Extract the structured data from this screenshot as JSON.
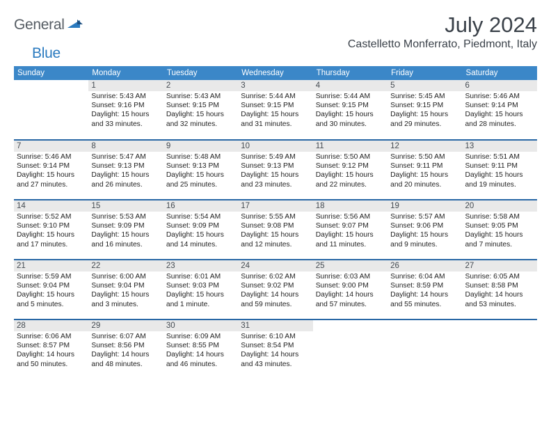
{
  "logo": {
    "word1": "General",
    "word2": "Blue"
  },
  "title": "July 2024",
  "location": "Castelletto Monferrato, Piedmont, Italy",
  "day_headers": [
    "Sunday",
    "Monday",
    "Tuesday",
    "Wednesday",
    "Thursday",
    "Friday",
    "Saturday"
  ],
  "header_bg": "#3b87c8",
  "rule_color": "#2867a5",
  "daynum_bg": "#e9e9e9",
  "weeks": [
    [
      {
        "n": "",
        "sr": "",
        "ss": "",
        "dl": ""
      },
      {
        "n": "1",
        "sr": "Sunrise: 5:43 AM",
        "ss": "Sunset: 9:16 PM",
        "dl": "Daylight: 15 hours and 33 minutes."
      },
      {
        "n": "2",
        "sr": "Sunrise: 5:43 AM",
        "ss": "Sunset: 9:15 PM",
        "dl": "Daylight: 15 hours and 32 minutes."
      },
      {
        "n": "3",
        "sr": "Sunrise: 5:44 AM",
        "ss": "Sunset: 9:15 PM",
        "dl": "Daylight: 15 hours and 31 minutes."
      },
      {
        "n": "4",
        "sr": "Sunrise: 5:44 AM",
        "ss": "Sunset: 9:15 PM",
        "dl": "Daylight: 15 hours and 30 minutes."
      },
      {
        "n": "5",
        "sr": "Sunrise: 5:45 AM",
        "ss": "Sunset: 9:15 PM",
        "dl": "Daylight: 15 hours and 29 minutes."
      },
      {
        "n": "6",
        "sr": "Sunrise: 5:46 AM",
        "ss": "Sunset: 9:14 PM",
        "dl": "Daylight: 15 hours and 28 minutes."
      }
    ],
    [
      {
        "n": "7",
        "sr": "Sunrise: 5:46 AM",
        "ss": "Sunset: 9:14 PM",
        "dl": "Daylight: 15 hours and 27 minutes."
      },
      {
        "n": "8",
        "sr": "Sunrise: 5:47 AM",
        "ss": "Sunset: 9:13 PM",
        "dl": "Daylight: 15 hours and 26 minutes."
      },
      {
        "n": "9",
        "sr": "Sunrise: 5:48 AM",
        "ss": "Sunset: 9:13 PM",
        "dl": "Daylight: 15 hours and 25 minutes."
      },
      {
        "n": "10",
        "sr": "Sunrise: 5:49 AM",
        "ss": "Sunset: 9:13 PM",
        "dl": "Daylight: 15 hours and 23 minutes."
      },
      {
        "n": "11",
        "sr": "Sunrise: 5:50 AM",
        "ss": "Sunset: 9:12 PM",
        "dl": "Daylight: 15 hours and 22 minutes."
      },
      {
        "n": "12",
        "sr": "Sunrise: 5:50 AM",
        "ss": "Sunset: 9:11 PM",
        "dl": "Daylight: 15 hours and 20 minutes."
      },
      {
        "n": "13",
        "sr": "Sunrise: 5:51 AM",
        "ss": "Sunset: 9:11 PM",
        "dl": "Daylight: 15 hours and 19 minutes."
      }
    ],
    [
      {
        "n": "14",
        "sr": "Sunrise: 5:52 AM",
        "ss": "Sunset: 9:10 PM",
        "dl": "Daylight: 15 hours and 17 minutes."
      },
      {
        "n": "15",
        "sr": "Sunrise: 5:53 AM",
        "ss": "Sunset: 9:09 PM",
        "dl": "Daylight: 15 hours and 16 minutes."
      },
      {
        "n": "16",
        "sr": "Sunrise: 5:54 AM",
        "ss": "Sunset: 9:09 PM",
        "dl": "Daylight: 15 hours and 14 minutes."
      },
      {
        "n": "17",
        "sr": "Sunrise: 5:55 AM",
        "ss": "Sunset: 9:08 PM",
        "dl": "Daylight: 15 hours and 12 minutes."
      },
      {
        "n": "18",
        "sr": "Sunrise: 5:56 AM",
        "ss": "Sunset: 9:07 PM",
        "dl": "Daylight: 15 hours and 11 minutes."
      },
      {
        "n": "19",
        "sr": "Sunrise: 5:57 AM",
        "ss": "Sunset: 9:06 PM",
        "dl": "Daylight: 15 hours and 9 minutes."
      },
      {
        "n": "20",
        "sr": "Sunrise: 5:58 AM",
        "ss": "Sunset: 9:05 PM",
        "dl": "Daylight: 15 hours and 7 minutes."
      }
    ],
    [
      {
        "n": "21",
        "sr": "Sunrise: 5:59 AM",
        "ss": "Sunset: 9:04 PM",
        "dl": "Daylight: 15 hours and 5 minutes."
      },
      {
        "n": "22",
        "sr": "Sunrise: 6:00 AM",
        "ss": "Sunset: 9:04 PM",
        "dl": "Daylight: 15 hours and 3 minutes."
      },
      {
        "n": "23",
        "sr": "Sunrise: 6:01 AM",
        "ss": "Sunset: 9:03 PM",
        "dl": "Daylight: 15 hours and 1 minute."
      },
      {
        "n": "24",
        "sr": "Sunrise: 6:02 AM",
        "ss": "Sunset: 9:02 PM",
        "dl": "Daylight: 14 hours and 59 minutes."
      },
      {
        "n": "25",
        "sr": "Sunrise: 6:03 AM",
        "ss": "Sunset: 9:00 PM",
        "dl": "Daylight: 14 hours and 57 minutes."
      },
      {
        "n": "26",
        "sr": "Sunrise: 6:04 AM",
        "ss": "Sunset: 8:59 PM",
        "dl": "Daylight: 14 hours and 55 minutes."
      },
      {
        "n": "27",
        "sr": "Sunrise: 6:05 AM",
        "ss": "Sunset: 8:58 PM",
        "dl": "Daylight: 14 hours and 53 minutes."
      }
    ],
    [
      {
        "n": "28",
        "sr": "Sunrise: 6:06 AM",
        "ss": "Sunset: 8:57 PM",
        "dl": "Daylight: 14 hours and 50 minutes."
      },
      {
        "n": "29",
        "sr": "Sunrise: 6:07 AM",
        "ss": "Sunset: 8:56 PM",
        "dl": "Daylight: 14 hours and 48 minutes."
      },
      {
        "n": "30",
        "sr": "Sunrise: 6:09 AM",
        "ss": "Sunset: 8:55 PM",
        "dl": "Daylight: 14 hours and 46 minutes."
      },
      {
        "n": "31",
        "sr": "Sunrise: 6:10 AM",
        "ss": "Sunset: 8:54 PM",
        "dl": "Daylight: 14 hours and 43 minutes."
      },
      {
        "n": "",
        "sr": "",
        "ss": "",
        "dl": ""
      },
      {
        "n": "",
        "sr": "",
        "ss": "",
        "dl": ""
      },
      {
        "n": "",
        "sr": "",
        "ss": "",
        "dl": ""
      }
    ]
  ]
}
